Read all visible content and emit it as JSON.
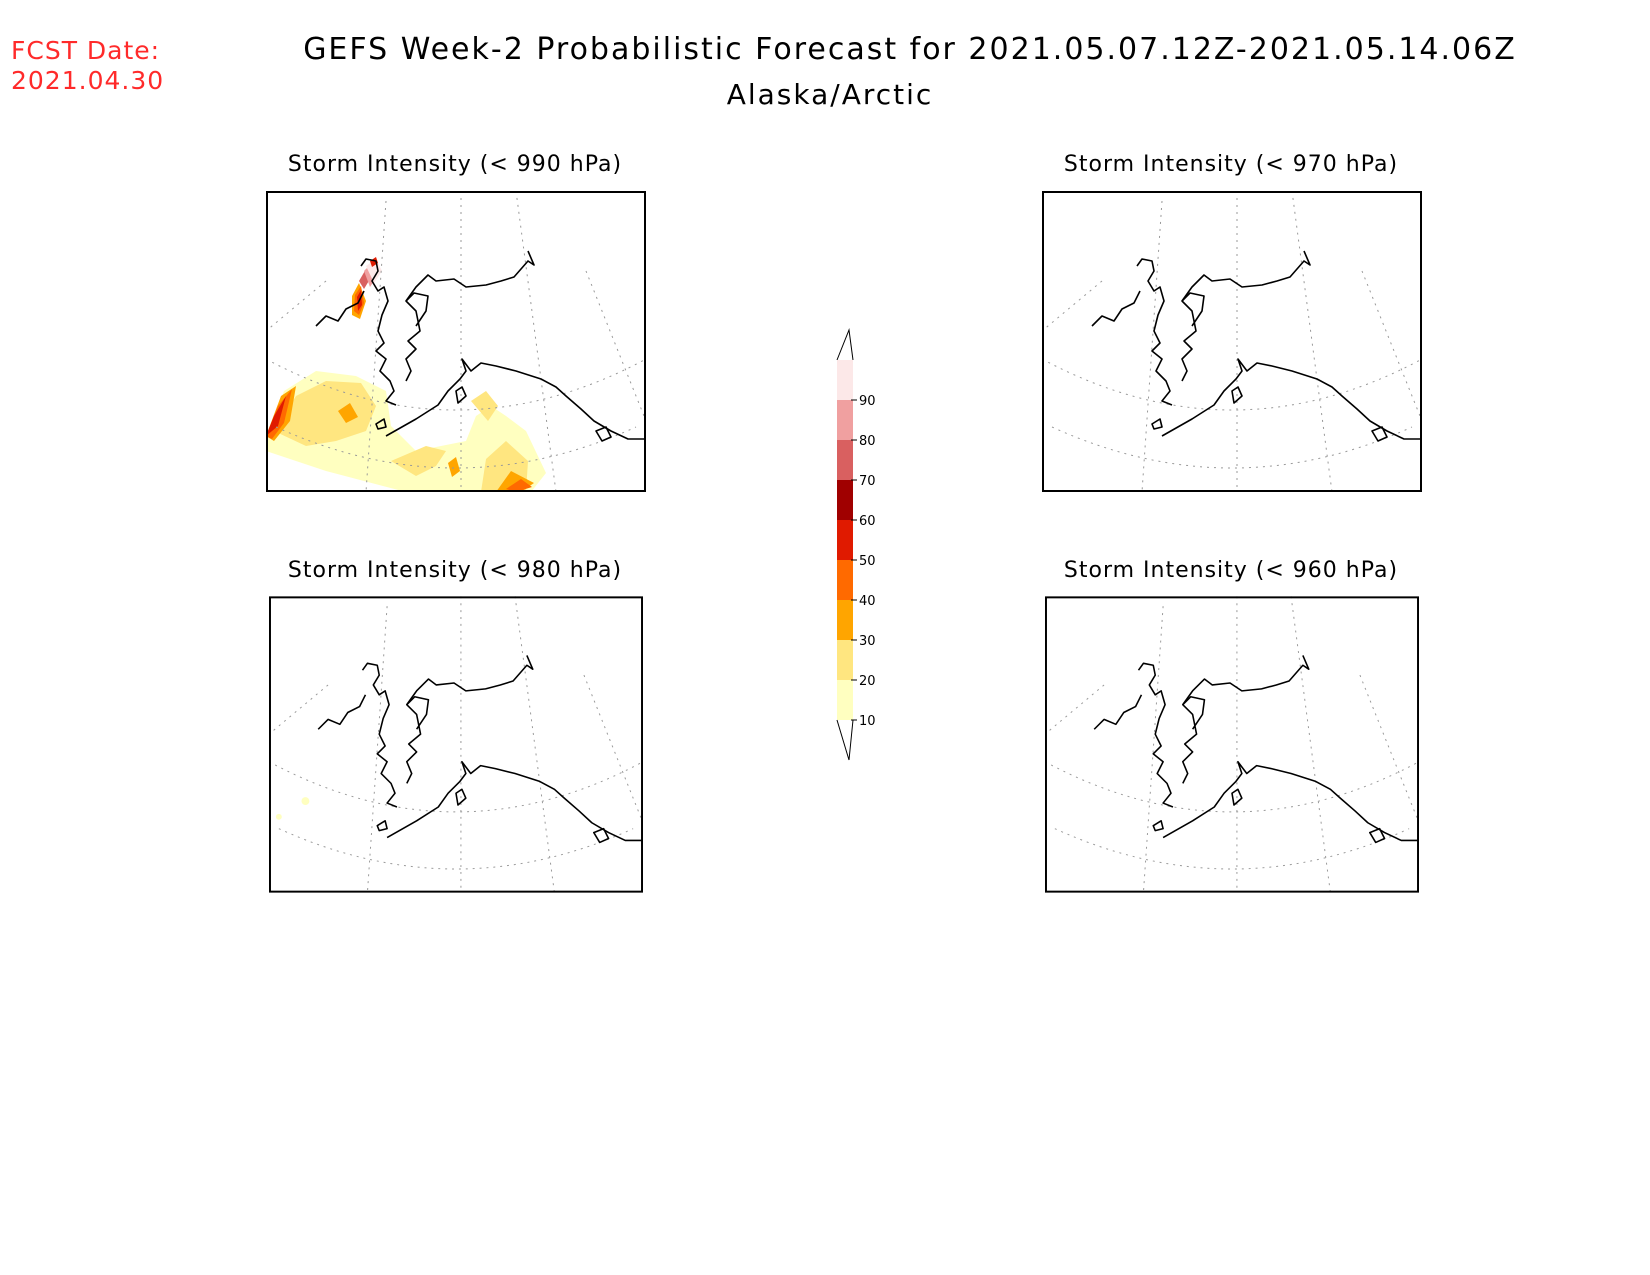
{
  "fcst_date": {
    "label": "FCST Date:",
    "value": "2021.04.30"
  },
  "title": "GEFS Week-2 Probabilistic Forecast for 2021.05.07.12Z-2021.05.14.06Z",
  "region": "Alaska/Arctic",
  "panels": [
    {
      "title": "Storm Intensity (< 990 hPa)",
      "has_shading": true
    },
    {
      "title": "Storm Intensity (< 970 hPa)",
      "has_shading": false
    },
    {
      "title": "Storm Intensity (< 980 hPa)",
      "has_shading": true
    },
    {
      "title": "Storm Intensity (< 960 hPa)",
      "has_shading": false
    }
  ],
  "colorbar": {
    "levels": [
      "10",
      "20",
      "30",
      "40",
      "50",
      "60",
      "70",
      "80",
      "90"
    ],
    "colors": [
      "#ffffc0",
      "#ffe680",
      "#ffa500",
      "#ff6a00",
      "#e01a00",
      "#a00000",
      "#d96060",
      "#f0a0a0",
      "#fce8e8"
    ]
  }
}
